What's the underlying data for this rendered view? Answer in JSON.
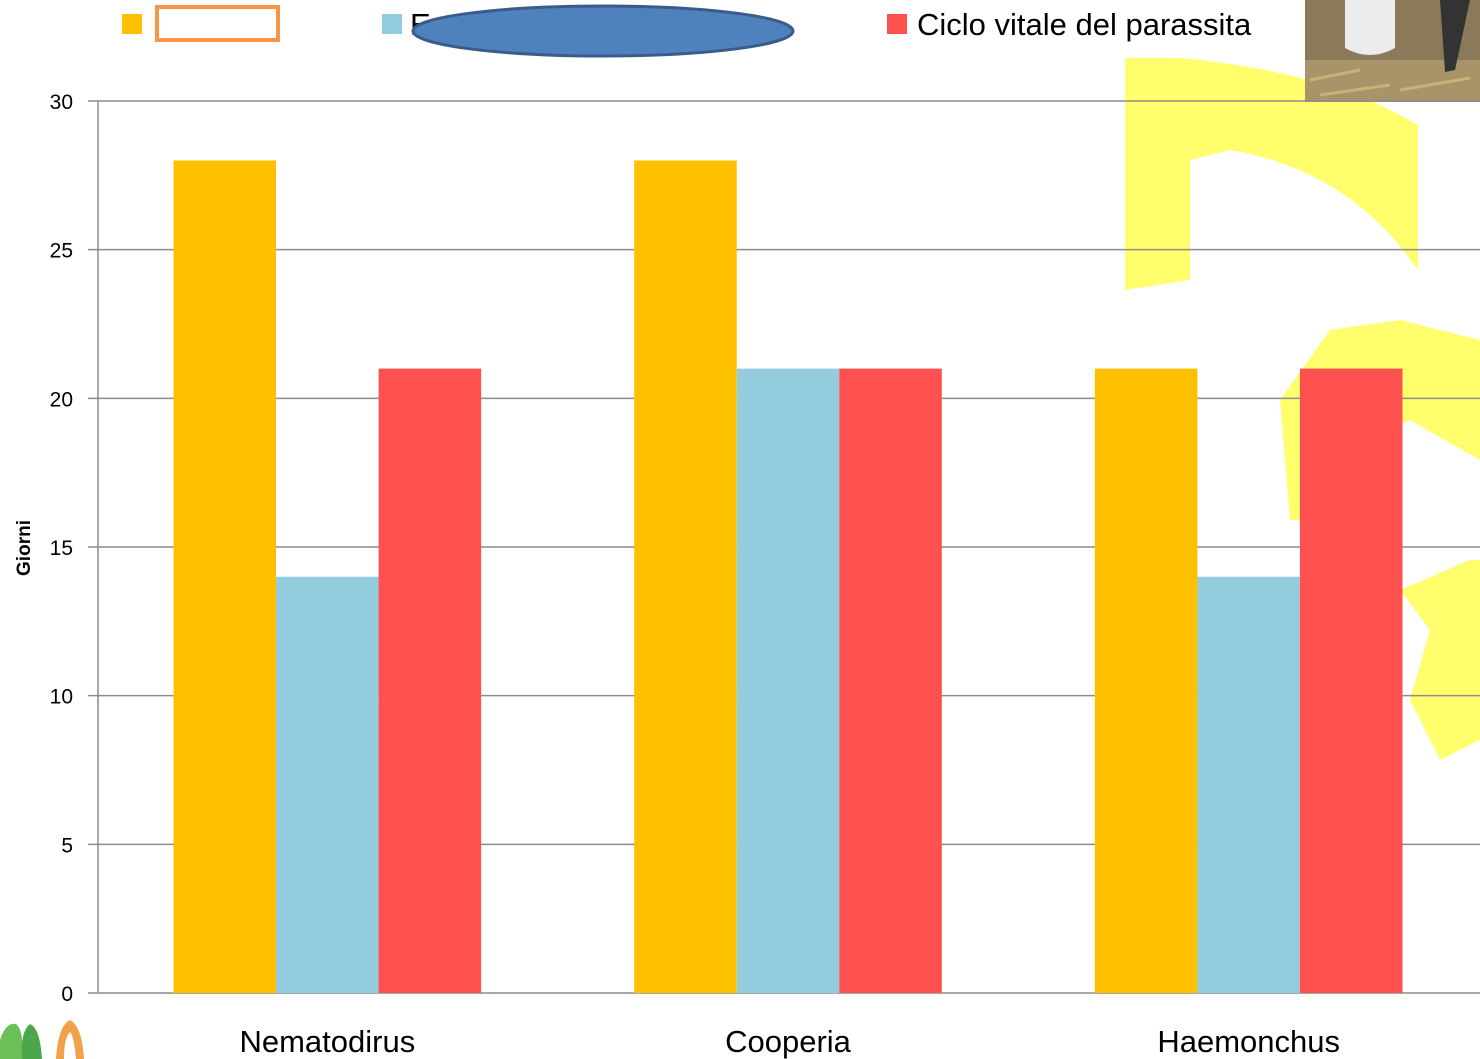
{
  "chart_data": {
    "type": "bar",
    "categories": [
      "Nematodirus",
      "Cooperia",
      "Haemonchus"
    ],
    "series": [
      {
        "legend_label": "",
        "color": "#FFC000",
        "values": [
          28,
          28,
          21
        ]
      },
      {
        "legend_label": "Ev",
        "color": "#93CDDD",
        "values": [
          14,
          21,
          14
        ]
      },
      {
        "name": "Ciclo vitale del parassita",
        "legend_label": "Ciclo vitale del parassita",
        "color": "#FF5050",
        "values": [
          21,
          21,
          21
        ]
      }
    ],
    "ylabel": "Giorni",
    "ylim": [
      0,
      30
    ],
    "yticks": [
      0,
      5,
      10,
      15,
      20,
      25,
      30
    ],
    "grid": true,
    "legend_position": "top"
  },
  "overlays": {
    "outline_box_color": "#F79646",
    "ellipse_fill": "#4F81BD",
    "ellipse_stroke": "#385D8A",
    "watermark_color": "#FFFF66",
    "photo_icon": "photo-thumbnail-icon",
    "logo_icon": "leaf-logo-icon"
  }
}
